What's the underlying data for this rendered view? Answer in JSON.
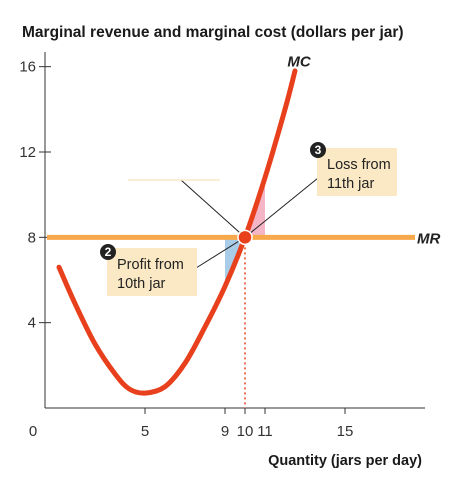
{
  "chart_data": {
    "type": "line",
    "title": "Marginal revenue and marginal cost (dollars per jar)",
    "xlabel": "Quantity (jars per day)",
    "xlim": [
      0,
      19
    ],
    "ylim": [
      0,
      16.5
    ],
    "x_ticks": [
      {
        "value": 0,
        "label": "0"
      },
      {
        "value": 5,
        "label": "5"
      },
      {
        "value": 9,
        "label": "9"
      },
      {
        "value": 10,
        "label": "10",
        "highlight": true
      },
      {
        "value": 11,
        "label": "11"
      },
      {
        "value": 15,
        "label": "15"
      }
    ],
    "y_ticks": [
      {
        "value": 4,
        "label": "4"
      },
      {
        "value": 8,
        "label": "8",
        "highlight": true
      },
      {
        "value": 12,
        "label": "12"
      },
      {
        "value": 16,
        "label": "16"
      }
    ],
    "series": [
      {
        "name": "MC",
        "color": "#e8401c",
        "x": [
          0.7,
          1.5,
          2.5,
          3.5,
          4.2,
          5.0,
          6.0,
          7.0,
          8.0,
          9.0,
          10.0,
          11.0,
          12.0,
          12.5
        ],
        "y": [
          6.6,
          4.9,
          3.0,
          1.6,
          0.9,
          0.7,
          1.0,
          2.1,
          3.8,
          5.7,
          8.0,
          10.8,
          14.0,
          15.8
        ]
      },
      {
        "name": "MR",
        "color": "#f7a84a",
        "x": [
          0,
          18.5
        ],
        "y": [
          8,
          8
        ]
      }
    ],
    "profit_area": {
      "x_from": 9,
      "x_to": 10,
      "color": "#a9cde8"
    },
    "loss_area": {
      "x_from": 10,
      "x_to": 11,
      "color": "#f4b6c6"
    },
    "equilibrium": {
      "x": 10,
      "y": 8
    },
    "annotations": [
      {
        "number": "2",
        "lines": [
          "Profit from",
          "10th jar"
        ]
      },
      {
        "number": "3",
        "lines": [
          "Loss from",
          "11th jar"
        ]
      }
    ],
    "colors": {
      "mc": "#e8401c",
      "mr": "#f7a84a",
      "accent": "#e8401c",
      "callout_bg": "#fbe9c6",
      "axis": "#333333"
    }
  }
}
